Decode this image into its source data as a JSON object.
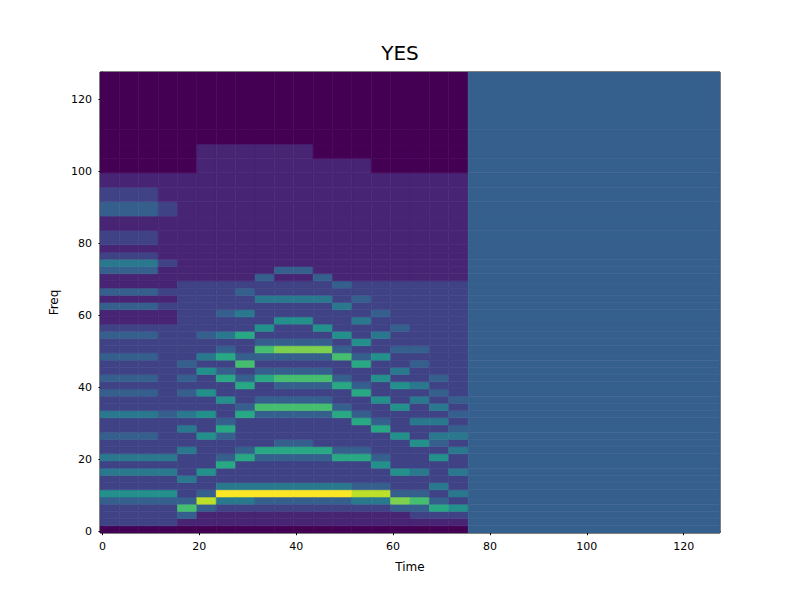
{
  "chart_data": {
    "type": "heatmap",
    "title": "YES",
    "x_label": "Time",
    "y_label": "Freq",
    "xlim": [
      -0.5,
      127.5
    ],
    "ylim": [
      -0.5,
      127.5
    ],
    "xticks": [
      0,
      20,
      40,
      60,
      80,
      100,
      120
    ],
    "yticks": [
      0,
      20,
      40,
      60,
      80,
      100,
      120
    ],
    "clim": [
      0,
      10
    ],
    "time_edges": [
      -0.5,
      3.5,
      7.5,
      11.5,
      15.5,
      19.5,
      23.5,
      27.5,
      31.5,
      35.5,
      39.5,
      43.5,
      47.5,
      51.5,
      55.5,
      59.5,
      63.5,
      67.5,
      71.5,
      75.5,
      127.5
    ],
    "freq_edges": [
      -0.5,
      1.5,
      3.5,
      5.5,
      7.5,
      9.5,
      11.5,
      13.5,
      15.5,
      17.5,
      19.5,
      21.5,
      23.5,
      25.5,
      27.5,
      29.5,
      31.5,
      33.5,
      35.5,
      37.5,
      39.5,
      41.5,
      43.5,
      45.5,
      47.5,
      49.5,
      51.5,
      53.5,
      55.5,
      57.5,
      59.5,
      61.5,
      63.5,
      65.5,
      67.5,
      69.5,
      71.5,
      73.5,
      75.5,
      77.5,
      79.5,
      83.5,
      87.5,
      91.5,
      95.5,
      99.5,
      103.5,
      107.5,
      111.5,
      127.5
    ],
    "cells_by_time": [
      [
        0,
        2,
        2,
        2,
        3,
        5,
        2,
        2,
        4,
        2,
        4,
        2,
        2,
        3,
        2,
        2,
        4,
        2,
        2,
        3,
        2,
        3,
        2,
        2,
        3,
        2,
        2,
        3,
        2,
        1,
        1,
        3,
        1,
        3,
        1,
        1,
        3,
        4,
        2,
        1,
        2,
        1,
        3,
        2,
        1,
        0,
        0,
        0,
        0
      ],
      [
        0,
        2,
        2,
        2,
        3,
        5,
        2,
        2,
        4,
        2,
        4,
        2,
        2,
        3,
        2,
        2,
        4,
        2,
        2,
        3,
        2,
        3,
        2,
        2,
        3,
        2,
        2,
        3,
        2,
        1,
        1,
        3,
        1,
        3,
        1,
        1,
        3,
        4,
        2,
        1,
        2,
        1,
        3,
        2,
        1,
        0,
        0,
        0,
        0
      ],
      [
        0,
        2,
        2,
        2,
        3,
        5,
        2,
        2,
        4,
        2,
        4,
        2,
        2,
        3,
        2,
        2,
        4,
        2,
        2,
        3,
        2,
        3,
        2,
        2,
        3,
        2,
        2,
        3,
        2,
        1,
        1,
        3,
        1,
        3,
        1,
        1,
        3,
        4,
        2,
        1,
        2,
        1,
        3,
        2,
        1,
        0,
        0,
        0,
        0
      ],
      [
        0,
        2,
        2,
        2,
        3,
        5,
        2,
        2,
        4,
        2,
        4,
        2,
        2,
        2,
        2,
        2,
        3,
        2,
        2,
        2,
        2,
        2,
        2,
        2,
        2,
        2,
        2,
        2,
        2,
        1,
        1,
        2,
        1,
        2,
        1,
        1,
        1,
        2,
        1,
        1,
        1,
        1,
        2,
        1,
        1,
        0,
        0,
        0,
        0
      ],
      [
        0,
        1,
        3,
        7,
        3,
        2,
        2,
        4,
        2,
        2,
        2,
        4,
        2,
        2,
        4,
        2,
        4,
        2,
        2,
        3,
        2,
        3,
        2,
        3,
        2,
        2,
        2,
        2,
        2,
        2,
        2,
        2,
        2,
        2,
        2,
        1,
        1,
        1,
        1,
        1,
        1,
        1,
        1,
        1,
        1,
        0,
        0,
        0,
        0
      ],
      [
        0,
        1,
        1,
        3,
        9,
        3,
        2,
        2,
        5,
        2,
        2,
        2,
        2,
        5,
        2,
        2,
        5,
        2,
        2,
        5,
        2,
        2,
        5,
        2,
        4,
        2,
        2,
        3,
        2,
        2,
        2,
        2,
        2,
        2,
        2,
        1,
        1,
        1,
        1,
        1,
        1,
        1,
        1,
        1,
        1,
        1,
        1,
        0,
        0
      ],
      [
        0,
        1,
        1,
        2,
        4,
        10,
        4,
        2,
        2,
        6,
        3,
        2,
        2,
        3,
        6,
        3,
        2,
        2,
        5,
        2,
        2,
        6,
        3,
        2,
        6,
        3,
        2,
        4,
        2,
        2,
        3,
        2,
        2,
        2,
        2,
        1,
        1,
        1,
        1,
        1,
        1,
        1,
        1,
        1,
        1,
        1,
        1,
        0,
        0
      ],
      [
        0,
        1,
        1,
        2,
        4,
        10,
        4,
        2,
        2,
        2,
        6,
        3,
        2,
        2,
        2,
        2,
        6,
        3,
        2,
        2,
        6,
        3,
        2,
        7,
        3,
        2,
        2,
        6,
        2,
        2,
        4,
        2,
        2,
        3,
        2,
        1,
        1,
        1,
        1,
        1,
        1,
        1,
        1,
        1,
        1,
        1,
        1,
        0,
        0
      ],
      [
        0,
        1,
        1,
        2,
        3,
        10,
        4,
        2,
        2,
        2,
        3,
        6,
        2,
        2,
        2,
        2,
        3,
        7,
        3,
        2,
        2,
        6,
        3,
        2,
        3,
        7,
        3,
        2,
        5,
        2,
        2,
        2,
        4,
        2,
        2,
        3,
        1,
        1,
        1,
        1,
        1,
        1,
        1,
        1,
        1,
        1,
        1,
        0,
        0
      ],
      [
        0,
        1,
        1,
        2,
        3,
        10,
        4,
        2,
        2,
        2,
        3,
        6,
        3,
        2,
        2,
        2,
        3,
        7,
        3,
        2,
        3,
        7,
        3,
        2,
        3,
        8,
        3,
        2,
        2,
        5,
        2,
        2,
        4,
        2,
        2,
        1,
        3,
        1,
        1,
        1,
        1,
        1,
        1,
        1,
        1,
        1,
        1,
        0,
        0
      ],
      [
        0,
        1,
        1,
        2,
        3,
        10,
        4,
        2,
        2,
        2,
        3,
        6,
        3,
        2,
        2,
        2,
        3,
        7,
        3,
        2,
        3,
        7,
        3,
        2,
        3,
        8,
        3,
        2,
        2,
        5,
        2,
        2,
        4,
        2,
        2,
        1,
        3,
        1,
        1,
        1,
        1,
        1,
        1,
        1,
        1,
        1,
        1,
        0,
        0
      ],
      [
        0,
        1,
        1,
        2,
        3,
        10,
        4,
        2,
        2,
        2,
        3,
        6,
        2,
        2,
        2,
        2,
        3,
        7,
        3,
        2,
        3,
        7,
        3,
        2,
        3,
        8,
        3,
        2,
        5,
        2,
        2,
        2,
        4,
        2,
        2,
        3,
        1,
        1,
        1,
        1,
        1,
        1,
        1,
        1,
        1,
        1,
        0,
        0,
        0
      ],
      [
        0,
        1,
        1,
        2,
        3,
        10,
        4,
        2,
        2,
        2,
        6,
        3,
        2,
        2,
        2,
        2,
        6,
        3,
        2,
        2,
        6,
        3,
        2,
        2,
        7,
        3,
        2,
        5,
        2,
        2,
        2,
        4,
        2,
        2,
        3,
        1,
        1,
        1,
        1,
        1,
        1,
        1,
        1,
        1,
        1,
        1,
        0,
        0,
        0
      ],
      [
        0,
        1,
        1,
        2,
        4,
        9,
        3,
        2,
        2,
        2,
        6,
        3,
        2,
        2,
        2,
        6,
        3,
        2,
        2,
        6,
        3,
        2,
        2,
        6,
        3,
        2,
        5,
        2,
        2,
        4,
        2,
        2,
        3,
        2,
        2,
        1,
        1,
        1,
        1,
        1,
        1,
        1,
        1,
        1,
        1,
        1,
        0,
        0,
        0
      ],
      [
        0,
        1,
        1,
        2,
        4,
        9,
        3,
        2,
        2,
        5,
        3,
        2,
        2,
        2,
        6,
        3,
        2,
        2,
        5,
        2,
        2,
        5,
        2,
        2,
        5,
        2,
        2,
        4,
        2,
        2,
        3,
        2,
        2,
        2,
        2,
        1,
        1,
        1,
        1,
        1,
        1,
        1,
        1,
        1,
        1,
        0,
        0,
        0,
        0
      ],
      [
        0,
        1,
        1,
        3,
        8,
        3,
        2,
        2,
        5,
        2,
        2,
        2,
        2,
        5,
        2,
        2,
        2,
        5,
        2,
        2,
        5,
        2,
        4,
        2,
        2,
        3,
        2,
        2,
        3,
        2,
        2,
        2,
        2,
        2,
        2,
        1,
        1,
        1,
        1,
        1,
        1,
        1,
        1,
        1,
        1,
        0,
        0,
        0,
        0
      ],
      [
        0,
        1,
        2,
        3,
        7,
        3,
        2,
        2,
        4,
        2,
        2,
        2,
        5,
        2,
        2,
        4,
        2,
        2,
        4,
        2,
        4,
        2,
        2,
        3,
        2,
        3,
        2,
        2,
        2,
        2,
        2,
        2,
        2,
        2,
        2,
        1,
        1,
        1,
        1,
        1,
        1,
        1,
        1,
        1,
        1,
        0,
        0,
        0,
        0
      ],
      [
        0,
        1,
        2,
        6,
        3,
        2,
        4,
        2,
        2,
        2,
        5,
        2,
        3,
        4,
        2,
        4,
        2,
        4,
        2,
        3,
        2,
        3,
        2,
        2,
        2,
        2,
        2,
        2,
        2,
        2,
        2,
        2,
        2,
        2,
        2,
        1,
        1,
        1,
        1,
        1,
        1,
        1,
        1,
        1,
        1,
        0,
        0,
        0,
        0
      ],
      [
        0,
        1,
        2,
        5,
        2,
        4,
        2,
        2,
        4,
        2,
        2,
        4,
        2,
        4,
        3,
        2,
        3,
        2,
        3,
        2,
        2,
        2,
        2,
        2,
        2,
        2,
        2,
        2,
        2,
        2,
        2,
        2,
        2,
        2,
        2,
        1,
        1,
        1,
        1,
        1,
        1,
        1,
        1,
        1,
        1,
        0,
        0,
        0,
        0
      ],
      [
        3,
        3,
        3,
        3,
        3,
        3,
        3,
        3,
        3,
        3,
        3,
        3,
        3,
        3,
        3,
        3,
        3,
        3,
        3,
        3,
        3,
        3,
        3,
        3,
        3,
        3,
        3,
        3,
        3,
        3,
        3,
        3,
        3,
        3,
        3,
        3,
        3,
        3,
        3,
        3,
        3,
        3,
        3,
        3,
        3,
        3,
        3,
        3,
        3
      ]
    ]
  }
}
